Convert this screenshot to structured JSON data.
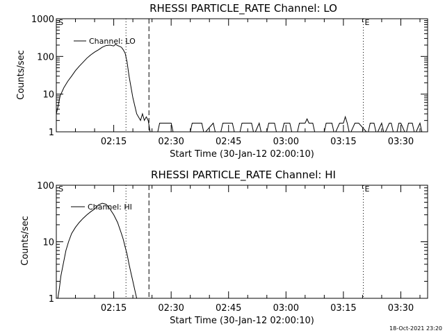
{
  "chart_data": [
    {
      "type": "line",
      "title": "RHESSI PARTICLE_RATE Channel: LO",
      "xlabel": "Start Time (30-Jan-12 02:00:10)",
      "ylabel": "Counts/sec",
      "yscale": "log",
      "ylim": [
        1,
        1000
      ],
      "yticks": [
        "1",
        "10",
        "100",
        "1000"
      ],
      "xlim_minutes": [
        0,
        97
      ],
      "xticks": [
        {
          "label": "02:15",
          "minute": 15
        },
        {
          "label": "02:30",
          "minute": 30
        },
        {
          "label": "02:45",
          "minute": 45
        },
        {
          "label": "03:00",
          "minute": 60
        },
        {
          "label": "03:15",
          "minute": 75
        },
        {
          "label": "03:30",
          "minute": 90
        }
      ],
      "legend": "Channel: LO",
      "legend_position": "top-left",
      "markers": [
        {
          "label": "S",
          "minute": 0.2,
          "style": "none"
        },
        {
          "minute": 18.2,
          "style": "dotted"
        },
        {
          "minute": 24.2,
          "style": "dashed"
        },
        {
          "label": "E",
          "minute": 80.2,
          "style": "dotted"
        },
        {
          "minute": 97.0,
          "style": "dotted"
        }
      ],
      "series": [
        {
          "name": "Channel: LO",
          "x_minutes": [
            0.0,
            0.5,
            1.0,
            2.0,
            3.0,
            4.0,
            5.0,
            6.0,
            7.0,
            8.0,
            9.0,
            10.0,
            11.0,
            12.0,
            13.0,
            14.0,
            15.0,
            15.5,
            16.0,
            16.5,
            17.0,
            17.5,
            18.0,
            18.5,
            19.0,
            20.0,
            21.0,
            22.0,
            22.5,
            23.0,
            23.5,
            24.0,
            24.5,
            25.0,
            25.5,
            26.0,
            26.5,
            27.0,
            28.0,
            29.0,
            30.0,
            30.5,
            31.0,
            32.0,
            34.0,
            35.0,
            35.5,
            36.0,
            38.0,
            38.5,
            39.0,
            41.0,
            41.5,
            42.0,
            43.0,
            43.5,
            44.0,
            46.0,
            46.5,
            47.0,
            48.0,
            48.5,
            49.0,
            51.0,
            51.5,
            52.0,
            53.0,
            53.5,
            54.0,
            55.0,
            55.5,
            56.0,
            57.0,
            57.5,
            58.0,
            59.0,
            59.5,
            60.0,
            61.0,
            61.5,
            62.0,
            63.0,
            63.5,
            64.0,
            65.0,
            65.5,
            66.0,
            67.0,
            67.5,
            68.0,
            70.0,
            70.5,
            71.0,
            72.0,
            72.5,
            73.0,
            74.0,
            74.5,
            75.0,
            75.5,
            76.0,
            76.5,
            77.0,
            78.0,
            78.5,
            79.0,
            81.0,
            81.5,
            82.0,
            83.0,
            83.5,
            84.0,
            85.0,
            85.5,
            86.0,
            87.0,
            87.5,
            88.0,
            89.0,
            89.5,
            90.0,
            91.0,
            91.5,
            92.0,
            93.0,
            93.5,
            94.0,
            95.0,
            95.5,
            96.0,
            97.0
          ],
          "y": [
            3,
            5,
            9,
            15,
            22,
            30,
            42,
            55,
            70,
            90,
            110,
            130,
            150,
            175,
            195,
            200,
            190,
            210,
            195,
            185,
            175,
            150,
            120,
            70,
            30,
            8,
            3,
            2,
            3,
            2,
            2.5,
            2,
            1,
            1,
            1,
            1,
            1,
            1.7,
            1.7,
            1.7,
            1.7,
            1,
            1,
            1,
            1,
            1,
            1.7,
            1.7,
            1.7,
            1,
            1,
            1.7,
            1,
            1,
            1,
            1.7,
            1.7,
            1.7,
            1,
            1,
            1,
            1.7,
            1.7,
            1.7,
            1,
            1,
            1.7,
            1,
            1,
            1,
            1.7,
            1.7,
            1.7,
            1,
            1,
            1,
            1.7,
            1.7,
            1.7,
            1,
            1,
            1,
            1.7,
            1.7,
            1.7,
            2.2,
            1.7,
            1.7,
            1,
            1,
            1,
            1.7,
            1.7,
            1.7,
            1,
            1,
            1.7,
            1.7,
            1.7,
            2.5,
            1.7,
            1,
            1,
            1.7,
            1.7,
            1.7,
            1,
            1,
            1.7,
            1.7,
            1,
            1,
            1.7,
            1,
            1,
            1.7,
            1.7,
            1,
            1,
            1.7,
            1.7,
            1,
            1,
            1.7,
            1.7,
            1,
            1,
            1.7,
            1,
            1,
            1
          ]
        }
      ]
    },
    {
      "type": "line",
      "title": "RHESSI PARTICLE_RATE Channel: HI",
      "xlabel": "Start Time (30-Jan-12 02:00:10)",
      "ylabel": "Counts/sec",
      "yscale": "log",
      "ylim": [
        1,
        100
      ],
      "yticks": [
        "1",
        "10",
        "100"
      ],
      "xlim_minutes": [
        0,
        97
      ],
      "xticks": [
        {
          "label": "02:15",
          "minute": 15
        },
        {
          "label": "02:30",
          "minute": 30
        },
        {
          "label": "02:45",
          "minute": 45
        },
        {
          "label": "03:00",
          "minute": 60
        },
        {
          "label": "03:15",
          "minute": 75
        },
        {
          "label": "03:30",
          "minute": 90
        }
      ],
      "legend": "Channel: HI",
      "legend_position": "top-left",
      "markers": [
        {
          "label": "S",
          "minute": 0.2,
          "style": "none"
        },
        {
          "minute": 18.2,
          "style": "dotted"
        },
        {
          "minute": 24.2,
          "style": "dashed"
        },
        {
          "label": "E",
          "minute": 80.2,
          "style": "dotted"
        },
        {
          "minute": 97.0,
          "style": "dotted"
        }
      ],
      "series": [
        {
          "name": "Channel: HI",
          "x_minutes": [
            0.4,
            0.8,
            1.2,
            1.8,
            2.5,
            3.2,
            4.0,
            5.0,
            6.0,
            7.0,
            8.0,
            9.0,
            10.0,
            11.0,
            12.0,
            13.0,
            14.0,
            15.0,
            16.0,
            17.0,
            17.5,
            18.0,
            18.5,
            19.0,
            19.5,
            20.0,
            20.5,
            21.0
          ],
          "y": [
            1.0,
            1.5,
            2.5,
            4,
            7,
            10,
            14,
            18,
            22,
            26,
            30,
            34,
            38,
            45,
            48,
            46,
            38,
            30,
            22,
            14,
            11,
            8,
            6,
            4,
            2.8,
            2,
            1.4,
            1.0
          ]
        }
      ]
    }
  ],
  "footer": {
    "timestamp": "18-Oct-2021 23:20"
  }
}
